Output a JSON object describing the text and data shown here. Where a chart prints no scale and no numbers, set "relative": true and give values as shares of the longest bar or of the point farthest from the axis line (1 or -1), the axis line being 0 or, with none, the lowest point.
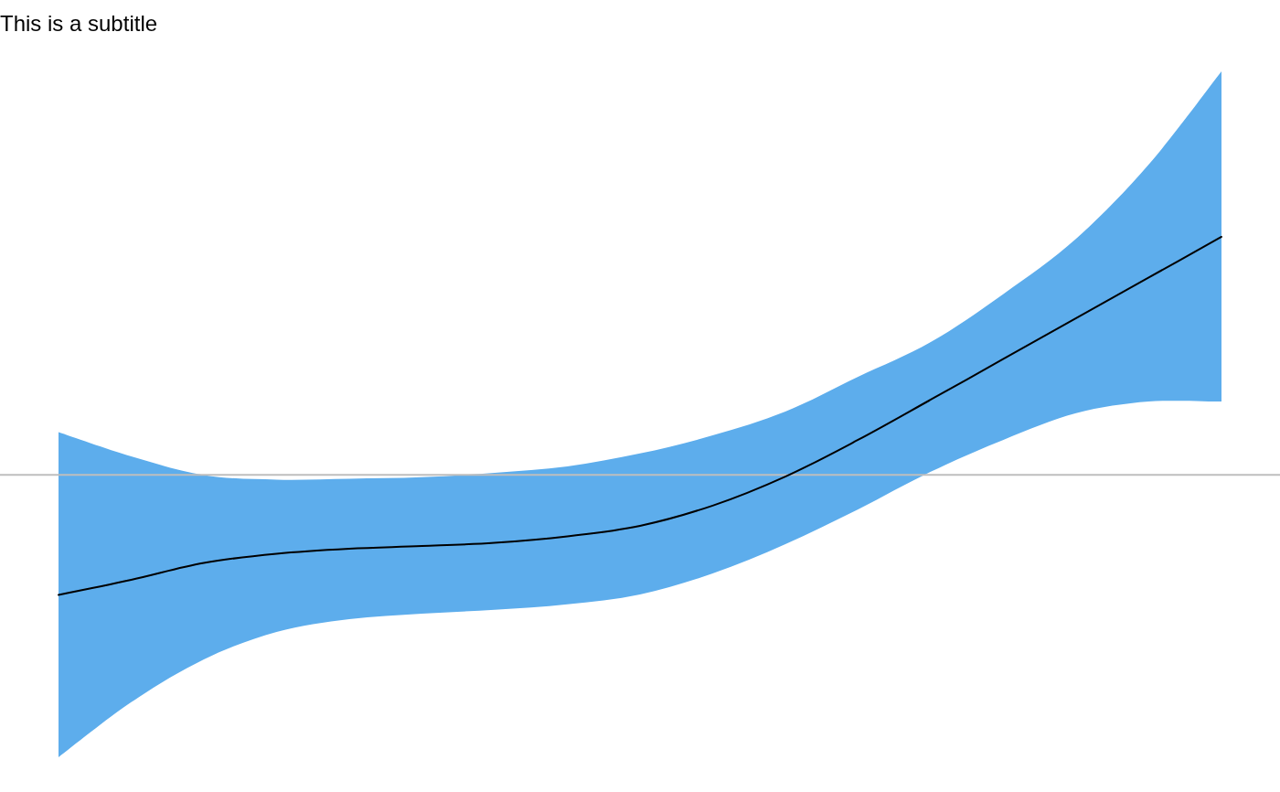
{
  "chart_data": {
    "type": "line",
    "subtitle": "This is a subtitle",
    "relative": true,
    "categories": [
      null,
      null,
      null,
      null,
      null,
      null,
      null,
      null,
      null,
      null,
      null,
      null,
      null,
      null,
      null,
      null,
      null
    ],
    "series": [
      {
        "color": "#000000",
        "values": [
          -0.504,
          -0.441,
          -0.37,
          -0.331,
          -0.31,
          -0.299,
          -0.285,
          -0.258,
          -0.214,
          -0.129,
          -0.007,
          0.147,
          0.316,
          0.487,
          0.658,
          0.829,
          1.0
        ],
        "lower": [
          -1.186,
          -0.955,
          -0.775,
          -0.66,
          -0.606,
          -0.583,
          -0.567,
          -0.544,
          -0.502,
          -0.414,
          -0.291,
          -0.145,
          0.013,
          0.147,
          0.259,
          0.308,
          0.308
        ],
        "upper": [
          0.18,
          0.078,
          -0.001,
          -0.02,
          -0.016,
          -0.01,
          0.009,
          0.036,
          0.09,
          0.166,
          0.266,
          0.412,
          0.558,
          0.76,
          0.992,
          1.304,
          1.695
        ]
      }
    ],
    "ref_lines": [
      {
        "axis": "y",
        "value": 0,
        "color": "#bebebe"
      }
    ]
  }
}
